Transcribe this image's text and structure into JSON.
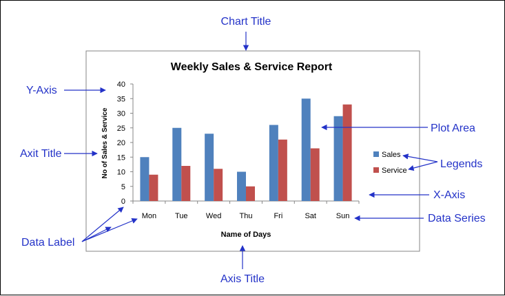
{
  "annotations": {
    "chart_title": "Chart Title",
    "y_axis": "Y-Axis",
    "axis_title_left": "Axit Title",
    "data_label": "Data Label",
    "axis_title_bottom": "Axis Title",
    "plot_area": "Plot Area",
    "legends": "Legends",
    "x_axis": "X-Axis",
    "data_series": "Data Series"
  },
  "colors": {
    "annotation": "#2332c8",
    "sales": "#4f81bd",
    "service": "#c0504d",
    "axis": "#868686",
    "chart_border": "#868686",
    "text": "#000000"
  },
  "chart_data": {
    "type": "bar",
    "title": "Weekly Sales & Service Report",
    "xlabel": "Name of Days",
    "ylabel": "No of Sales  & Service",
    "categories": [
      "Mon",
      "Tue",
      "Wed",
      "Thu",
      "Fri",
      "Sat",
      "Sun"
    ],
    "series": [
      {
        "name": "Sales",
        "values": [
          15,
          25,
          23,
          10,
          26,
          35,
          29
        ]
      },
      {
        "name": "Service",
        "values": [
          9,
          12,
          11,
          5,
          21,
          18,
          33
        ]
      }
    ],
    "ylim": [
      0,
      40
    ],
    "yticks": [
      0,
      5,
      10,
      15,
      20,
      25,
      30,
      35,
      40
    ],
    "grid": false,
    "legend": "right"
  }
}
